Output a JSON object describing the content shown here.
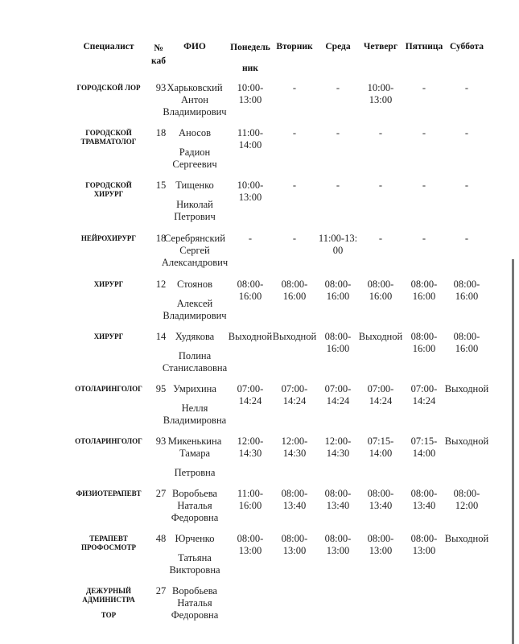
{
  "headers": [
    "Специалист",
    "№ каб",
    "ФИО",
    "Понедельник",
    "Вторник",
    "Среда",
    "Четверг",
    "Пятница",
    "Суббота"
  ],
  "header_lines": {
    "kab": [
      "№",
      "каб"
    ],
    "monday": [
      "Понедель",
      "ник"
    ]
  },
  "rows": [
    {
      "specialist": [
        "ГОРОДСКОЙ ЛОР"
      ],
      "room": "93",
      "name": [
        "Харьковский",
        "Антон",
        "Владимирович"
      ],
      "schedule": [
        "10:00-\n13:00",
        "-",
        "-",
        "10:00-\n13:00",
        "-",
        "-"
      ]
    },
    {
      "specialist": [
        "ГОРОДСКОЙ",
        "ТРАВМАТОЛОГ"
      ],
      "room": "18",
      "name": [
        "Аносов",
        "Радион",
        "Сергеевич"
      ],
      "schedule": [
        "11:00-\n14:00",
        "-",
        "-",
        "-",
        "-",
        "-"
      ]
    },
    {
      "specialist": [
        "ГОРОДСКОЙ",
        "ХИРУРГ"
      ],
      "room": "15",
      "name": [
        "Тищенко",
        "Николай",
        "Петрович"
      ],
      "schedule": [
        "10:00-\n13:00",
        "-",
        "-",
        "-",
        "-",
        "-"
      ]
    },
    {
      "specialist": [
        "НЕЙРОХИРУРГ"
      ],
      "room": "18",
      "name": [
        "Серебрянский",
        "Сергей",
        "Александрович"
      ],
      "schedule": [
        "-",
        "-",
        "11:00-13:\n00",
        "-",
        "-",
        "-"
      ]
    },
    {
      "specialist": [
        "ХИРУРГ"
      ],
      "room": "12",
      "name": [
        "Стоянов",
        "Алексей",
        "Владимирович"
      ],
      "schedule": [
        "08:00-\n16:00",
        "08:00-\n16:00",
        "08:00-\n16:00",
        "08:00-\n16:00",
        "08:00-\n16:00",
        "08:00-\n16:00"
      ]
    },
    {
      "specialist": [
        "ХИРУРГ"
      ],
      "room": "14",
      "name": [
        "Худякова",
        "Полина",
        "Станиславовна"
      ],
      "schedule": [
        "Выходной",
        "Выходной",
        "08:00-\n16:00",
        "Выходной",
        "08:00-\n16:00",
        "08:00-\n16:00"
      ]
    },
    {
      "specialist": [
        "ОТОЛАРИНГОЛОГ"
      ],
      "room": "95",
      "name": [
        "Умрихина",
        "Нелля",
        "Владимировна"
      ],
      "schedule": [
        "07:00-\n14:24",
        "07:00-\n14:24",
        "07:00-\n14:24",
        "07:00-\n14:24",
        "07:00-\n14:24",
        "Выходной"
      ]
    },
    {
      "specialist": [
        "ОТОЛАРИНГОЛОГ"
      ],
      "room": "93",
      "name": [
        "Микенькина",
        "Тамара",
        "Петровна"
      ],
      "schedule": [
        "12:00-\n14:30",
        "12:00-\n14:30",
        "12:00-\n14:30",
        "07:15-\n14:00",
        "07:15-\n14:00",
        "Выходной"
      ]
    },
    {
      "specialist": [
        "ФИЗИОТЕРАПЕВТ"
      ],
      "room": "27",
      "name": [
        "Воробьева",
        "Наталья",
        "Федоровна"
      ],
      "schedule": [
        "11:00-\n16:00",
        "08:00-\n13:40",
        "08:00-\n13:40",
        "08:00-\n13:40",
        "08:00-\n13:40",
        "08:00-\n12:00"
      ]
    },
    {
      "specialist": [
        "ТЕРАПЕВТ",
        "ПРОФОСМОТР"
      ],
      "room": "48",
      "name": [
        "Юрченко",
        "Татьяна",
        "Викторовна"
      ],
      "schedule": [
        "08:00-\n13:00",
        "08:00-\n13:00",
        "08:00-\n13:00",
        "08:00-\n13:00",
        "08:00-\n13:00",
        "Выходной"
      ]
    },
    {
      "specialist": [
        "ДЕЖУРНЫЙ",
        "АДМИНИСТРА",
        "ТОР"
      ],
      "room": "27",
      "name": [
        "Воробьева",
        "Наталья",
        "Федоровна"
      ],
      "schedule": [
        "",
        "",
        "",
        "",
        "",
        ""
      ]
    }
  ]
}
